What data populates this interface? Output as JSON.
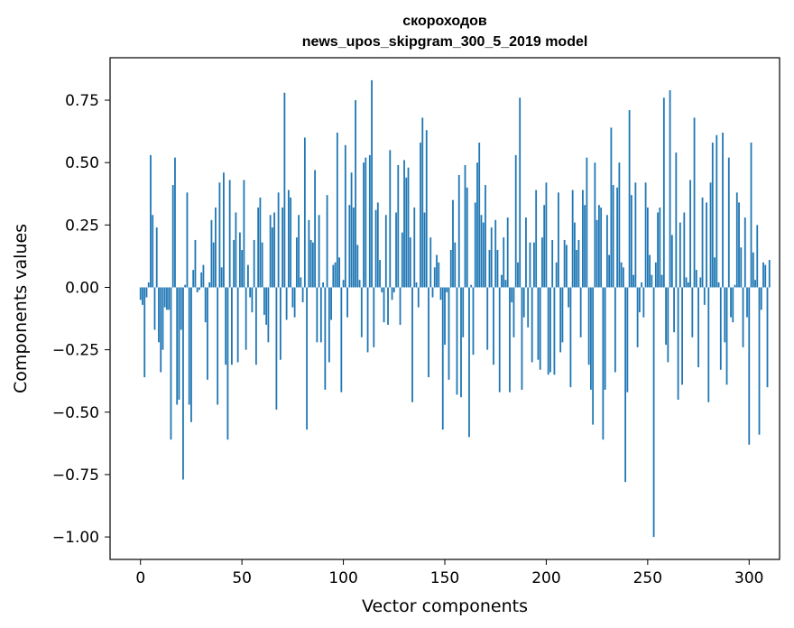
{
  "chart_data": {
    "type": "bar",
    "title": "скороходов",
    "subtitle": "news_upos_skipgram_300_5_2019 model",
    "xlabel": "Vector components",
    "ylabel": "Components values",
    "xlim": [
      -15,
      315
    ],
    "ylim": [
      -1.09,
      0.92
    ],
    "xticks": [
      0,
      50,
      100,
      150,
      200,
      250,
      300
    ],
    "yticks": [
      0.75,
      0.5,
      0.25,
      0.0,
      -0.25,
      -0.5,
      -0.75,
      -1.0
    ],
    "ytick_labels": [
      "0.75",
      "0.50",
      "0.25",
      "0.00",
      "−0.25",
      "−0.50",
      "−0.75",
      "−1.00"
    ],
    "bar_color": "#1f77b4",
    "grid": false,
    "values": [
      -0.05,
      -0.07,
      -0.36,
      -0.04,
      0.02,
      0.53,
      0.29,
      -0.17,
      0.24,
      -0.22,
      -0.34,
      -0.25,
      -0.08,
      -0.09,
      -0.09,
      -0.61,
      0.41,
      0.52,
      -0.47,
      -0.45,
      -0.17,
      -0.77,
      0.01,
      0.38,
      -0.47,
      -0.54,
      0.07,
      0.19,
      -0.02,
      -0.01,
      0.06,
      0.09,
      -0.14,
      -0.37,
      0.02,
      0.27,
      0.18,
      0.32,
      -0.47,
      0.42,
      0.08,
      0.46,
      -0.31,
      -0.61,
      0.43,
      -0.31,
      0.19,
      0.3,
      -0.3,
      0.22,
      0.15,
      0.43,
      -0.25,
      0.09,
      -0.04,
      -0.1,
      0.19,
      -0.31,
      0.32,
      0.36,
      0.18,
      -0.11,
      -0.15,
      -0.22,
      0.29,
      0.24,
      0.3,
      -0.49,
      0.38,
      -0.29,
      0.32,
      0.78,
      -0.13,
      0.39,
      0.36,
      -0.08,
      -0.12,
      0.2,
      0.29,
      0.04,
      -0.06,
      0.6,
      -0.57,
      0.27,
      0.19,
      0.18,
      0.47,
      -0.22,
      0.29,
      -0.22,
      0.02,
      -0.41,
      0.37,
      -0.3,
      -0.13,
      0.09,
      0.1,
      0.62,
      0.12,
      -0.42,
      0.03,
      0.57,
      -0.12,
      0.33,
      0.46,
      0.32,
      0.75,
      0.17,
      0.03,
      -0.2,
      0.5,
      0.52,
      -0.26,
      0.53,
      0.83,
      -0.24,
      0.31,
      0.34,
      0.11,
      -0.02,
      -0.14,
      0.29,
      -0.15,
      0.55,
      -0.05,
      -0.02,
      0.3,
      0.49,
      -0.15,
      0.22,
      0.51,
      0.44,
      0.48,
      0.2,
      -0.46,
      0.32,
      0.02,
      -0.08,
      0.58,
      0.68,
      0.3,
      0.63,
      -0.36,
      0.2,
      -0.04,
      0.08,
      0.13,
      0.1,
      -0.05,
      -0.57,
      -0.23,
      -0.02,
      -0.37,
      0.15,
      0.35,
      0.18,
      -0.43,
      0.45,
      -0.44,
      -0.2,
      0.49,
      0.4,
      -0.6,
      0.01,
      -0.27,
      0.34,
      0.5,
      0.58,
      0.29,
      0.26,
      0.41,
      -0.25,
      0.15,
      0.24,
      -0.31,
      0.27,
      0.15,
      -0.42,
      0.05,
      0.2,
      0.03,
      0.28,
      -0.42,
      -0.06,
      -0.2,
      0.53,
      0.1,
      0.76,
      -0.41,
      -0.12,
      0.28,
      -0.16,
      0.18,
      -0.3,
      0.18,
      0.39,
      -0.29,
      -0.33,
      0.2,
      0.33,
      0.42,
      -0.35,
      -0.34,
      0.19,
      -0.35,
      0.1,
      0.38,
      -0.26,
      -0.22,
      0.19,
      0.17,
      -0.08,
      -0.4,
      0.39,
      0.26,
      0.15,
      0.19,
      -0.2,
      0.39,
      0.33,
      0.52,
      -0.31,
      -0.41,
      -0.55,
      0.5,
      0.27,
      0.33,
      0.32,
      -0.61,
      -0.41,
      0.29,
      0.13,
      0.64,
      0.41,
      -0.34,
      0.4,
      0.5,
      0.1,
      0.08,
      -0.78,
      -0.42,
      0.71,
      0.37,
      0.05,
      0.42,
      -0.24,
      -0.1,
      0.02,
      -0.12,
      0.42,
      0.32,
      0.13,
      0.05,
      -1.0,
      0.1,
      0.3,
      0.32,
      0.05,
      0.76,
      -0.23,
      -0.3,
      0.79,
      0.21,
      -0.18,
      0.54,
      -0.45,
      0.26,
      -0.39,
      0.3,
      0.04,
      0.02,
      0.43,
      -0.2,
      0.68,
      0.07,
      -0.32,
      0.04,
      0.36,
      -0.07,
      0.34,
      -0.46,
      0.42,
      0.58,
      0.12,
      0.61,
      0.02,
      -0.33,
      0.62,
      -0.22,
      -0.39,
      0.52,
      -0.12,
      -0.14,
      0.01,
      0.38,
      0.34,
      0.16,
      -0.24,
      0.28,
      -0.12,
      -0.63,
      0.58,
      0.14,
      0.03,
      0.25,
      -0.59,
      -0.09,
      0.1,
      0.09,
      -0.4,
      0.11
    ]
  }
}
